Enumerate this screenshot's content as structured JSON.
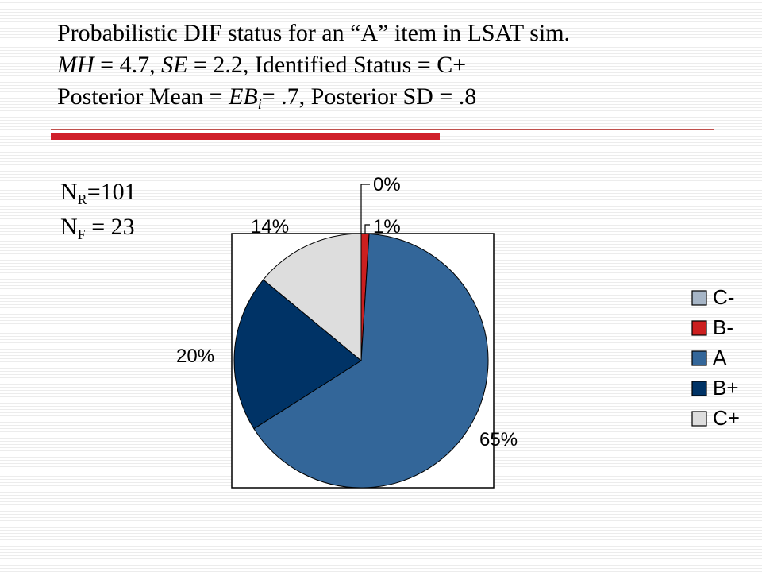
{
  "title": {
    "line1": "Probabilistic DIF status for an “A” item in LSAT sim.",
    "mh_label": "MH",
    "mh_value": " = 4.7, ",
    "se_label": "SE",
    "se_value": " = 2.2, Identified Status = C+",
    "line3_prefix": "Posterior Mean = ",
    "eb_label": "EB",
    "eb_sub": "i",
    "line3_suffix": "= .7, Posterior SD = .8"
  },
  "counts": {
    "nr_letter": "N",
    "nr_sub": "R",
    "nr_value": "=101",
    "nf_letter": "N",
    "nf_sub": "F",
    "nf_value": " = 23"
  },
  "chart_data": {
    "type": "pie",
    "title": "",
    "start_angle_deg": 0,
    "direction": "clockwise",
    "slices": [
      {
        "name": "C-",
        "value": 0,
        "label": "0%",
        "color": "#a6b5c6"
      },
      {
        "name": "B-",
        "value": 1,
        "label": "1%",
        "color": "#cc1f1f"
      },
      {
        "name": "A",
        "value": 65,
        "label": "65%",
        "color": "#336699"
      },
      {
        "name": "B+",
        "value": 20,
        "label": "20%",
        "color": "#003366"
      },
      {
        "name": "C+",
        "value": 14,
        "label": "14%",
        "color": "#dddddd"
      }
    ],
    "legend": {
      "position": "right",
      "entries": [
        "C-",
        "B-",
        "A",
        "B+",
        "C+"
      ]
    },
    "border": true
  }
}
